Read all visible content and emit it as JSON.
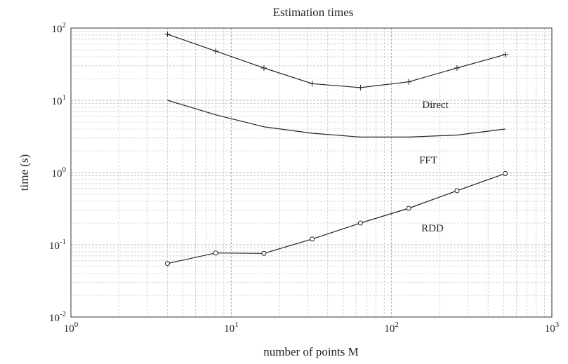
{
  "chart_data": {
    "type": "line",
    "title": "Estimation times",
    "xlabel": "number of points M",
    "ylabel": "time (s)",
    "xscale": "log",
    "yscale": "log",
    "xlim": [
      1,
      1000
    ],
    "ylim": [
      0.01,
      100
    ],
    "grid": true,
    "x_ticks": [
      {
        "base": "10",
        "exp": "0"
      },
      {
        "base": "10",
        "exp": "1"
      },
      {
        "base": "10",
        "exp": "2"
      },
      {
        "base": "10",
        "exp": "3"
      }
    ],
    "y_ticks": [
      {
        "base": "10",
        "exp": "-2"
      },
      {
        "base": "10",
        "exp": "-1"
      },
      {
        "base": "10",
        "exp": "0"
      },
      {
        "base": "10",
        "exp": "1"
      },
      {
        "base": "10",
        "exp": "2"
      }
    ],
    "series": [
      {
        "name": "Direct",
        "marker": "plus",
        "x": [
          4,
          8,
          16,
          32,
          64,
          128,
          256,
          512
        ],
        "y": [
          82,
          48,
          28,
          17,
          15,
          18,
          28,
          43
        ]
      },
      {
        "name": "FFT",
        "marker": "none",
        "x": [
          4,
          8,
          16,
          32,
          64,
          128,
          256,
          512
        ],
        "y": [
          10,
          6.3,
          4.3,
          3.5,
          3.1,
          3.1,
          3.3,
          4.0
        ]
      },
      {
        "name": "RDD",
        "marker": "circle",
        "x": [
          4,
          8,
          16,
          32,
          64,
          128,
          256,
          512
        ],
        "y": [
          0.055,
          0.077,
          0.076,
          0.12,
          0.2,
          0.32,
          0.56,
          0.97
        ]
      }
    ]
  }
}
